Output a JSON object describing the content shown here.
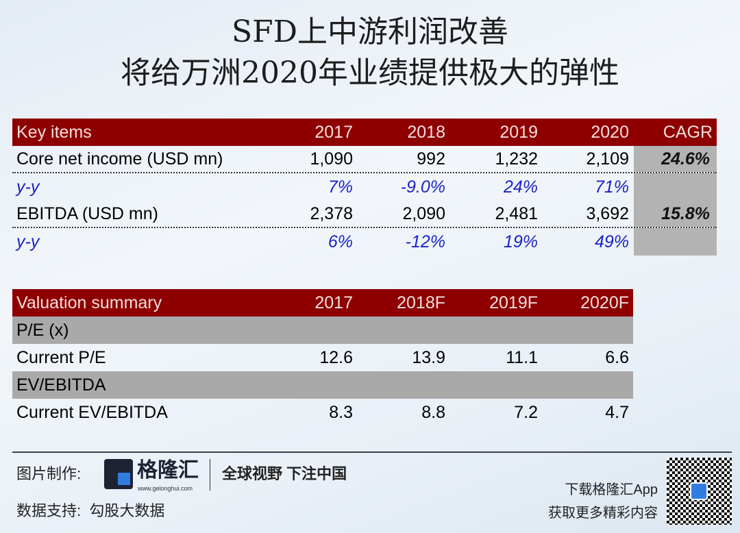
{
  "title": {
    "line1": "SFD上中游利润改善",
    "line2": "将给万洲2020年业绩提供极大的弹性"
  },
  "key_items": {
    "headers": [
      "Key items",
      "2017",
      "2018",
      "2019",
      "2020",
      "CAGR"
    ],
    "rows": [
      {
        "label": "Core net income (USD mn)",
        "values": [
          "1,090",
          "992",
          "1,232",
          "2,109"
        ],
        "cagr": "24.6%"
      },
      {
        "label": "y-y",
        "values": [
          "7%",
          "-9.0%",
          "24%",
          "71%"
        ],
        "cagr": ""
      },
      {
        "label": "EBITDA (USD mn)",
        "values": [
          "2,378",
          "2,090",
          "2,481",
          "3,692"
        ],
        "cagr": "15.8%"
      },
      {
        "label": "y-y",
        "values": [
          "6%",
          "-12%",
          "19%",
          "49%"
        ],
        "cagr": ""
      }
    ]
  },
  "valuation": {
    "headers": [
      "Valuation summary",
      "2017",
      "2018F",
      "2019F",
      "2020F"
    ],
    "section1": "P/E (x)",
    "row1": {
      "label": "Current P/E",
      "values": [
        "12.6",
        "13.9",
        "11.1",
        "6.6"
      ]
    },
    "section2": "EV/EBITDA",
    "row2": {
      "label": "Current EV/EBITDA",
      "values": [
        "8.3",
        "8.8",
        "7.2",
        "4.7"
      ]
    }
  },
  "footer": {
    "made_by": "图片制作:",
    "brand": "格隆汇",
    "brand_url": "www.gelonghui.com",
    "slogan": "全球视野 下注中国",
    "data_support": "数据支持:  勾股大数据",
    "download": "下载格隆汇App",
    "more": "获取更多精彩内容"
  },
  "colors": {
    "header": "#8e0000",
    "yy": "#1a22c8",
    "gray": "#a9a9a9"
  }
}
